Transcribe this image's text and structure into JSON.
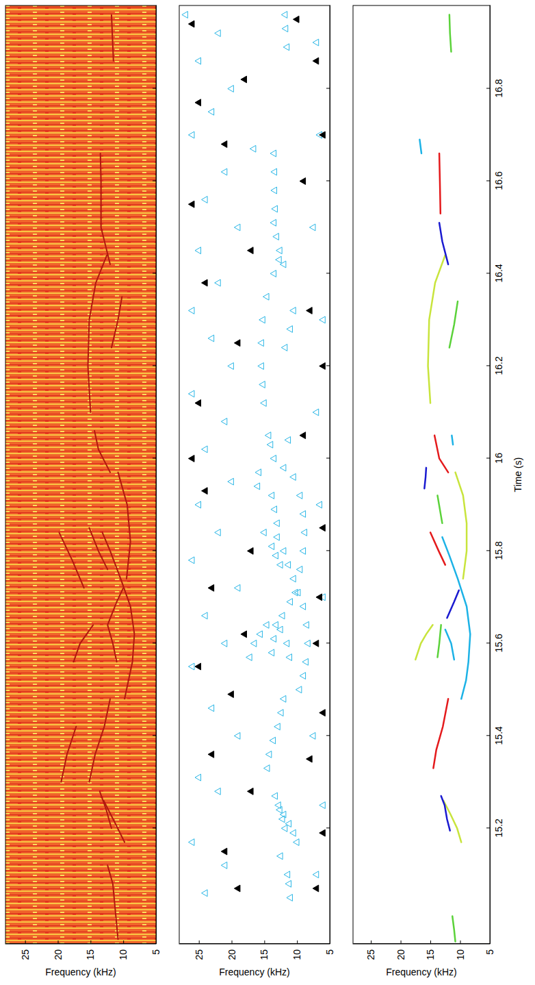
{
  "chart_data": [
    {
      "type": "spectrogram",
      "ylabel": "Frequency (kHz)",
      "xlim": [
        14.95,
        16.98
      ],
      "ylim": [
        5,
        28
      ],
      "xticks": [
        15.2,
        15.4,
        15.6,
        15.8,
        16,
        16.2,
        16.4,
        16.6,
        16.8
      ],
      "yticks": [
        5,
        10,
        15,
        20,
        25
      ],
      "tick_labels": "y",
      "color": "#b0180f",
      "series": [
        {
          "x": [
            14.96,
            15.02,
            15.08,
            15.12
          ],
          "values": [
            10.8,
            11.2,
            11.6,
            12.4
          ]
        },
        {
          "x": [
            15.17,
            15.21,
            15.26
          ],
          "values": [
            9.8,
            11.2,
            13.0
          ]
        },
        {
          "x": [
            15.2,
            15.24,
            15.28
          ],
          "values": [
            11.8,
            12.6,
            13.6
          ]
        },
        {
          "x": [
            15.3,
            15.36,
            15.42,
            15.48
          ],
          "values": [
            15.2,
            14.3,
            12.9,
            12.0
          ]
        },
        {
          "x": [
            15.3,
            15.36,
            15.42
          ],
          "values": [
            19.5,
            18.6,
            17.2
          ]
        },
        {
          "x": [
            15.48,
            15.56,
            15.62,
            15.68,
            15.74,
            15.8,
            15.84
          ],
          "values": [
            9.8,
            8.6,
            8.3,
            8.9,
            10.4,
            12.0,
            13.2
          ]
        },
        {
          "x": [
            15.56,
            15.6,
            15.64
          ],
          "values": [
            17.6,
            16.6,
            14.6
          ]
        },
        {
          "x": [
            15.56,
            15.6,
            15.64,
            15.69,
            15.72
          ],
          "values": [
            11.0,
            11.6,
            12.4,
            11.0,
            10.0
          ]
        },
        {
          "x": [
            15.72,
            15.78,
            15.84
          ],
          "values": [
            16.0,
            17.8,
            19.8
          ]
        },
        {
          "x": [
            15.74,
            15.82,
            15.9,
            15.97
          ],
          "values": [
            9.5,
            8.9,
            9.4,
            10.8
          ]
        },
        {
          "x": [
            15.76,
            15.8,
            15.85
          ],
          "values": [
            12.4,
            13.8,
            15.2
          ]
        },
        {
          "x": [
            15.97,
            16.02,
            16.06
          ],
          "values": [
            12.0,
            13.8,
            14.4
          ]
        },
        {
          "x": [
            16.1,
            16.2,
            16.3,
            16.38,
            16.44
          ],
          "values": [
            15.0,
            15.4,
            15.2,
            14.2,
            12.5
          ]
        },
        {
          "x": [
            16.24,
            16.3,
            16.35
          ],
          "values": [
            11.8,
            10.8,
            10.2
          ]
        },
        {
          "x": [
            16.42,
            16.5,
            16.6,
            16.66
          ],
          "values": [
            12.0,
            13.4,
            13.4,
            13.5
          ]
        },
        {
          "x": [
            16.86,
            16.96
          ],
          "values": [
            11.5,
            11.8
          ]
        }
      ]
    },
    {
      "type": "scatter",
      "ylabel": "Frequency (kHz)",
      "xlim": [
        14.95,
        16.98
      ],
      "ylim": [
        5,
        28
      ],
      "xticks": [
        15.2,
        15.4,
        15.6,
        15.8,
        16,
        16.2,
        16.4,
        16.6,
        16.8
      ],
      "yticks": [
        5,
        10,
        15,
        20,
        25
      ],
      "tick_labels": "y",
      "series": [
        {
          "color": "#29b6e6",
          "marker": "triangle-open",
          "x": [
            15.05,
            15.08,
            15.1,
            15.14,
            15.17,
            15.19,
            15.21,
            15.23,
            15.25,
            15.2,
            15.22,
            15.24,
            15.27,
            15.33,
            15.36,
            15.39,
            15.42,
            15.45,
            15.48,
            15.5,
            15.53,
            15.56,
            15.6,
            15.64,
            15.68,
            15.71,
            15.74,
            15.77,
            15.8,
            15.83,
            15.57,
            15.6,
            15.62,
            15.64,
            15.58,
            15.61,
            15.64,
            15.57,
            15.6,
            15.63,
            15.66,
            15.69,
            15.71,
            15.77,
            15.79,
            15.81,
            15.84,
            15.76,
            15.8,
            15.84,
            15.88,
            15.92,
            15.96,
            15.86,
            15.89,
            15.92,
            15.94,
            15.97,
            15.98,
            16.0,
            16.03,
            16.05,
            16.04,
            16.12,
            16.16,
            16.2,
            16.25,
            16.3,
            16.35,
            16.4,
            16.43,
            16.24,
            16.28,
            16.32,
            16.42,
            16.45,
            16.48,
            16.51,
            16.54,
            16.58,
            16.62,
            16.66,
            16.67,
            16.89,
            16.93,
            16.96,
            15.06,
            15.12,
            15.17,
            15.28,
            15.31,
            15.4,
            15.46,
            15.55,
            15.6,
            15.66,
            15.72,
            15.78,
            15.84,
            15.9,
            15.95,
            16.02,
            16.08,
            16.14,
            16.2,
            16.26,
            16.32,
            16.38,
            16.45,
            16.5,
            16.56,
            16.62,
            16.7,
            16.75,
            16.8,
            16.86,
            16.92,
            16.96,
            15.1,
            15.25,
            15.4,
            15.7,
            15.9,
            16.1,
            16.3,
            16.5,
            16.7,
            16.9
          ],
          "values": [
            11,
            11.2,
            11.4,
            12.5,
            10,
            10.5,
            11.2,
            12,
            12.8,
            11.8,
            12.2,
            12.6,
            13.3,
            14.5,
            14.2,
            13.6,
            12.9,
            12.4,
            12,
            9.6,
            9,
            8.6,
            8.3,
            8.5,
            9,
            9.8,
            10.5,
            11.3,
            12,
            13,
            17.2,
            16.5,
            15.6,
            14.6,
            13.8,
            13.5,
            13.2,
            11.1,
            11.5,
            12.5,
            12.2,
            11,
            10.2,
            12.5,
            13.2,
            13.8,
            15,
            9.5,
            9,
            8.8,
            9,
            9.5,
            10.5,
            13,
            13.4,
            13.8,
            16,
            15.8,
            12,
            13.5,
            14,
            14.3,
            11.3,
            15,
            15.2,
            15.4,
            15.4,
            15.2,
            14.6,
            13.5,
            12.7,
            11.8,
            11,
            10.5,
            12,
            12.6,
            13.1,
            13.5,
            13.3,
            13.4,
            13.4,
            13.5,
            16.6,
            11.5,
            11.7,
            11.8,
            24,
            21,
            26,
            22,
            25,
            19,
            23,
            26,
            21,
            24,
            19,
            26,
            22,
            25,
            20,
            24,
            21,
            26,
            20,
            23,
            26,
            22,
            25,
            19,
            24,
            21,
            26,
            23,
            20,
            25,
            22,
            27,
            7,
            6,
            7.5,
            6,
            6.5,
            7,
            6,
            7.5,
            6.5,
            7
          ]
        },
        {
          "color": "#000000",
          "marker": "triangle",
          "x": [
            15.07,
            15.07,
            15.15,
            15.19,
            15.28,
            15.35,
            15.36,
            15.45,
            15.49,
            15.55,
            15.6,
            15.62,
            15.7,
            15.72,
            15.8,
            15.85,
            15.93,
            16.0,
            16.05,
            16.12,
            16.2,
            16.25,
            16.32,
            16.38,
            16.45,
            16.55,
            16.6,
            16.68,
            16.7,
            16.77,
            16.82,
            16.86,
            16.94,
            16.95
          ],
          "values": [
            19,
            7,
            21,
            6,
            17,
            8,
            23,
            6,
            20,
            25,
            7,
            18,
            6.5,
            23,
            17,
            6,
            24,
            26,
            9,
            25,
            6,
            19,
            8,
            24,
            17,
            26,
            9,
            21,
            6,
            25,
            18,
            7,
            26,
            10
          ]
        }
      ]
    },
    {
      "type": "line",
      "xlabel": "Time (s)",
      "ylabel": "Frequency (kHz)",
      "xlim": [
        14.95,
        16.98
      ],
      "ylim": [
        5,
        28
      ],
      "xticks": [
        15.2,
        15.4,
        15.6,
        15.8,
        16,
        16.2,
        16.4,
        16.6,
        16.8
      ],
      "yticks": [
        5,
        10,
        15,
        20,
        25
      ],
      "tick_labels": true,
      "series": [
        {
          "color": "#5bd23a",
          "x": [
            14.955,
            14.98,
            15.01
          ],
          "values": [
            10.8,
            11.0,
            11.3
          ]
        },
        {
          "color": "#c8e43c",
          "x": [
            15.17,
            15.2,
            15.23,
            15.26
          ],
          "values": [
            9.8,
            10.5,
            11.6,
            12.8
          ]
        },
        {
          "color": "#1a1ad0",
          "x": [
            15.195,
            15.22,
            15.25,
            15.27
          ],
          "values": [
            11.7,
            12.2,
            12.6,
            13.2
          ]
        },
        {
          "color": "#e41a1c",
          "x": [
            15.33,
            15.37,
            15.42,
            15.48
          ],
          "values": [
            14.5,
            14.0,
            12.9,
            12.0
          ]
        },
        {
          "color": "#1cb2e6",
          "x": [
            15.48,
            15.52,
            15.56,
            15.62,
            15.68,
            15.74,
            15.79,
            15.83
          ],
          "values": [
            9.8,
            9.0,
            8.6,
            8.3,
            8.9,
            10.4,
            11.8,
            13.0
          ]
        },
        {
          "color": "#c8e43c",
          "x": [
            15.565,
            15.6,
            15.62,
            15.64
          ],
          "values": [
            17.5,
            16.6,
            15.7,
            14.6
          ]
        },
        {
          "color": "#5bd23a",
          "x": [
            15.57,
            15.6,
            15.64
          ],
          "values": [
            13.8,
            13.5,
            13.2
          ]
        },
        {
          "color": "#1cb2e6",
          "x": [
            15.565,
            15.6,
            15.63
          ],
          "values": [
            11.0,
            11.5,
            12.5
          ]
        },
        {
          "color": "#1a1ad0",
          "x": [
            15.655,
            15.69,
            15.715
          ],
          "values": [
            12.2,
            11.0,
            10.2
          ]
        },
        {
          "color": "#e41a1c",
          "x": [
            15.77,
            15.8,
            15.84
          ],
          "values": [
            12.5,
            13.6,
            15.0
          ]
        },
        {
          "color": "#c8e43c",
          "x": [
            15.74,
            15.8,
            15.86,
            15.92,
            15.97
          ],
          "values": [
            9.5,
            8.9,
            8.9,
            9.5,
            10.8
          ]
        },
        {
          "color": "#5bd23a",
          "x": [
            15.86,
            15.92
          ],
          "values": [
            13.0,
            13.8
          ]
        },
        {
          "color": "#1a1ad0",
          "x": [
            15.935,
            15.96,
            15.98
          ],
          "values": [
            16.0,
            15.8,
            15.7
          ]
        },
        {
          "color": "#e41a1c",
          "x": [
            15.97,
            16.0,
            16.05
          ],
          "values": [
            12.0,
            13.5,
            14.3
          ]
        },
        {
          "color": "#1cb2e6",
          "x": [
            16.03,
            16.05
          ],
          "values": [
            11.2,
            11.4
          ]
        },
        {
          "color": "#c8e43c",
          "x": [
            16.12,
            16.2,
            16.3,
            16.38,
            16.44
          ],
          "values": [
            15.0,
            15.4,
            15.2,
            14.2,
            12.5
          ]
        },
        {
          "color": "#5bd23a",
          "x": [
            16.24,
            16.29,
            16.34
          ],
          "values": [
            11.8,
            11.0,
            10.4
          ]
        },
        {
          "color": "#1a1ad0",
          "x": [
            16.42,
            16.47,
            16.51
          ],
          "values": [
            12.0,
            13.0,
            13.5
          ]
        },
        {
          "color": "#e41a1c",
          "x": [
            16.53,
            16.6,
            16.66
          ],
          "values": [
            13.3,
            13.4,
            13.5
          ]
        },
        {
          "color": "#1cb2e6",
          "x": [
            16.66,
            16.69
          ],
          "values": [
            16.5,
            16.8
          ]
        },
        {
          "color": "#5bd23a",
          "x": [
            16.88,
            16.92,
            16.96
          ],
          "values": [
            11.5,
            11.7,
            11.8
          ]
        }
      ]
    }
  ]
}
